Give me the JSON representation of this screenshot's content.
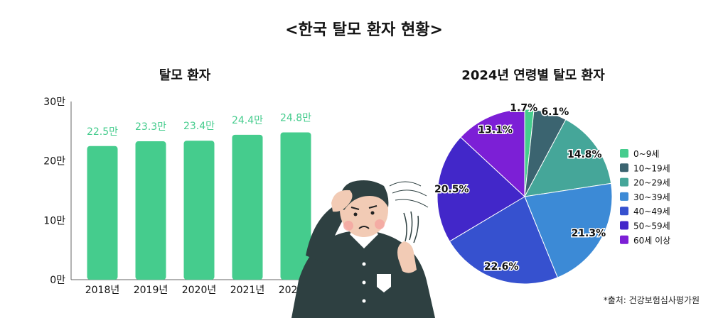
{
  "page_title": "<한국 탈모 환자 현황>",
  "source": "*출처: 건강보험심사평가원",
  "colors": {
    "bar": "#45CC8D",
    "bar_label": "#45CC8D",
    "axis": "#666666"
  },
  "illustration": "stressed man holding head while hair falls out",
  "chart_data": [
    {
      "type": "bar",
      "title": "탈모 환자",
      "categories": [
        "2018년",
        "2019년",
        "2020년",
        "2021년",
        "2022년"
      ],
      "values": [
        22.5,
        23.3,
        23.4,
        24.4,
        24.8
      ],
      "data_labels": [
        "22.5만",
        "23.3만",
        "23.4만",
        "24.4만",
        "24.8만"
      ],
      "yticks": [
        {
          "value": 0,
          "label": "0만"
        },
        {
          "value": 10,
          "label": "10만"
        },
        {
          "value": 20,
          "label": "20만"
        },
        {
          "value": 30,
          "label": "30만"
        }
      ],
      "ylim": [
        0,
        30
      ],
      "grid": false
    },
    {
      "type": "pie",
      "title": "2024년 연령별 탈모 환자",
      "legend_position": "right",
      "slices": [
        {
          "label": "0~9세",
          "value": 1.7,
          "display": "1.7%",
          "color": "#45CC8D"
        },
        {
          "label": "10~19세",
          "value": 6.1,
          "display": "6.1%",
          "color": "#3B6470"
        },
        {
          "label": "20~29세",
          "value": 14.8,
          "display": "14.8%",
          "color": "#45A699"
        },
        {
          "label": "30~39세",
          "value": 21.3,
          "display": "21.3%",
          "color": "#3C8AD6"
        },
        {
          "label": "40~49세",
          "value": 22.6,
          "display": "22.6%",
          "color": "#3651CF"
        },
        {
          "label": "50~59세",
          "value": 20.5,
          "display": "20.5%",
          "color": "#4227C9"
        },
        {
          "label": "60세 이상",
          "value": 13.1,
          "display": "13.1%",
          "color": "#7C1FD6"
        }
      ]
    }
  ]
}
